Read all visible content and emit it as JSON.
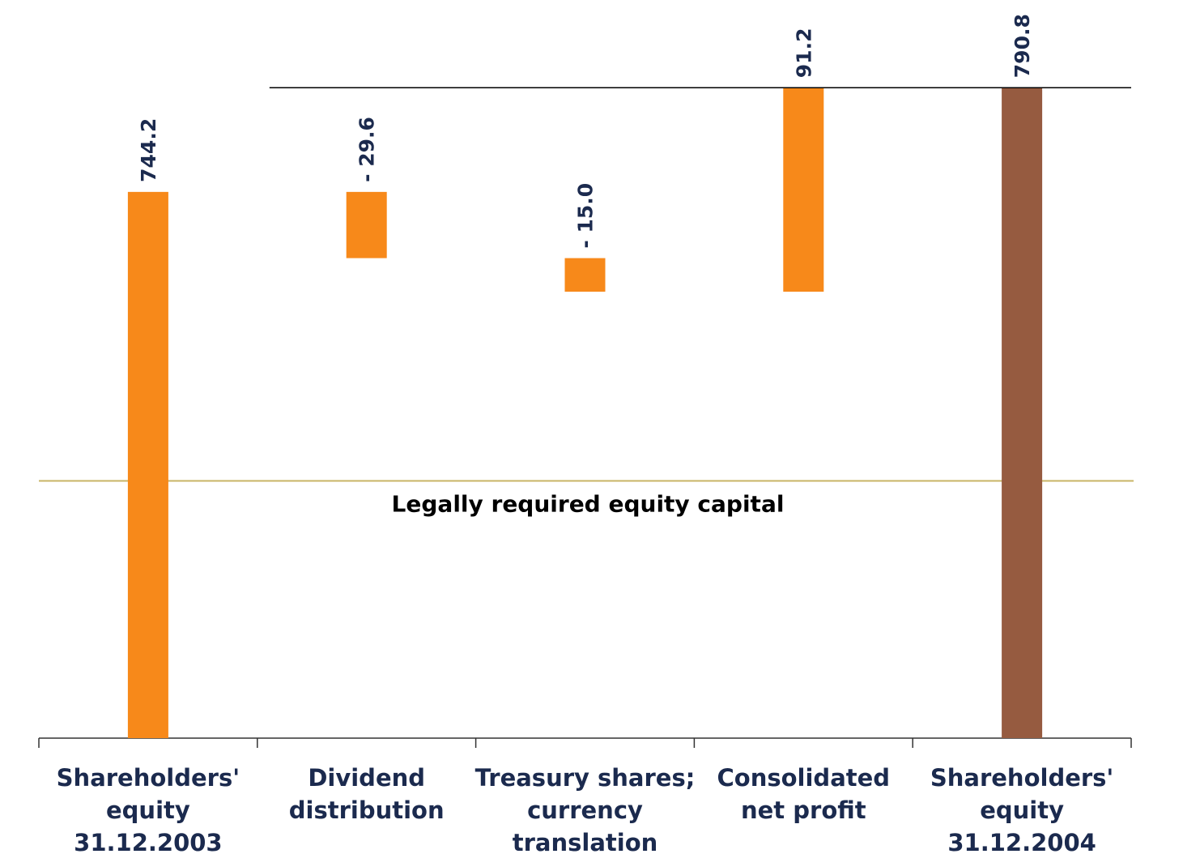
{
  "chart_data": {
    "type": "waterfall",
    "categories": [
      "Shareholders' equity\n31.12.2003",
      "Dividend\ndistribution",
      "Treasury shares;\ncurrency\ntranslation",
      "Consolidated\nnet profit",
      "Shareholders' equity\n31.12.2004"
    ],
    "values": [
      744.2,
      -29.6,
      -15.0,
      91.2,
      790.8
    ],
    "value_labels": [
      "744.2",
      "- 29.6",
      "- 15.0",
      "91.2",
      "790.8"
    ],
    "totals": [
      true,
      false,
      false,
      false,
      true
    ],
    "colors": [
      "#f7891a",
      "#f7891a",
      "#f7891a",
      "#f7891a",
      "#965b40"
    ],
    "ylim": [
      500,
      830
    ],
    "reference_line": {
      "value": 615,
      "label": "Legally required equity capital",
      "color": "#c8b466"
    }
  }
}
